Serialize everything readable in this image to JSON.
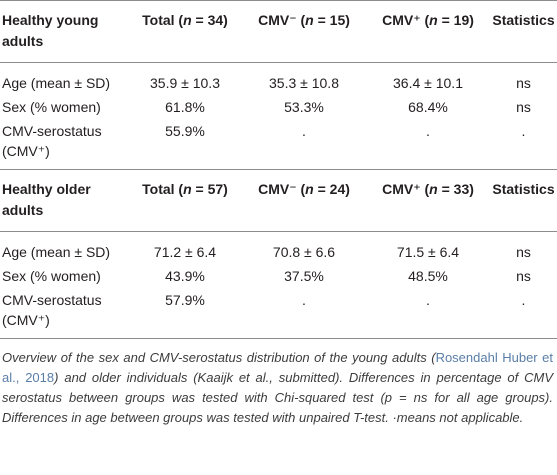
{
  "sections": [
    {
      "header": [
        [
          "Healthy young adults"
        ],
        [
          "Total (",
          "n",
          " = 34)"
        ],
        [
          "CMV⁻ (",
          "n",
          " = 15)"
        ],
        [
          "CMV⁺ (",
          "n",
          " = 19)"
        ],
        [
          "Statistics"
        ]
      ],
      "rows": [
        [
          "Age (mean ± SD)",
          "35.9 ± 10.3",
          "35.3 ± 10.8",
          "36.4 ± 10.1",
          "ns"
        ],
        [
          "Sex (% women)",
          "61.8%",
          "53.3%",
          "68.4%",
          "ns"
        ],
        [
          "CMV-serostatus (CMV⁺)",
          "55.9%",
          ".",
          ".",
          "."
        ]
      ]
    },
    {
      "header": [
        [
          "Healthy older adults"
        ],
        [
          "Total (",
          "n",
          " = 57)"
        ],
        [
          "CMV⁻ (",
          "n",
          " = 24)"
        ],
        [
          "CMV⁺ (",
          "n",
          " = 33)"
        ],
        [
          "Statistics"
        ]
      ],
      "rows": [
        [
          "Age (mean ± SD)",
          "71.2 ± 6.4",
          "70.8 ± 6.6",
          "71.5 ± 6.4",
          "ns"
        ],
        [
          "Sex (% women)",
          "43.9%",
          "37.5%",
          "48.5%",
          "ns"
        ],
        [
          "CMV-serostatus (CMV⁺)",
          "57.9%",
          ".",
          ".",
          "."
        ]
      ]
    }
  ],
  "footnote": [
    "Overview of the sex and CMV-serostatus distribution of the young adults (",
    "Rosendahl Huber et al., 2018",
    ") and older individuals (Kaaijk et al., submitted). Differences in percentage of CMV serostatus between groups was tested with Chi-squared test (p = ns for all age groups). Differences in age between groups was tested with unpaired T-test. ·means not applicable."
  ]
}
